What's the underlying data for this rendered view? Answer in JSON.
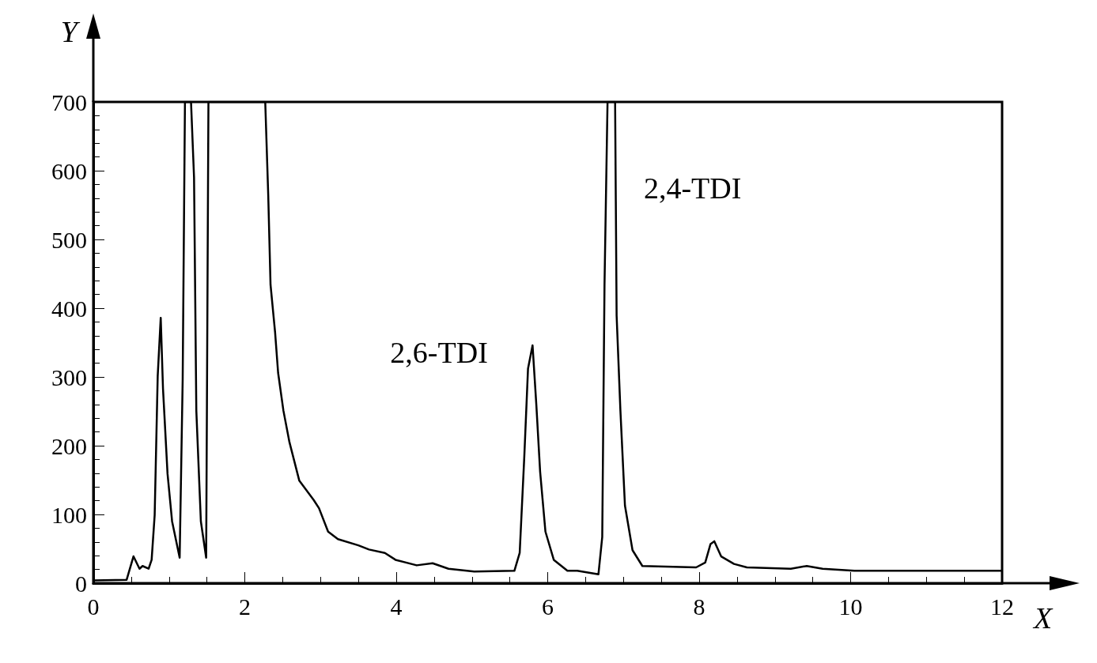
{
  "chart_data": {
    "type": "line",
    "xlabel": "X",
    "ylabel": "Y",
    "xlim": [
      0,
      12
    ],
    "xticks": [
      0,
      2,
      4,
      6,
      8,
      10,
      12
    ],
    "ylim": [
      0,
      700
    ],
    "yticks": [
      0,
      100,
      200,
      300,
      400,
      500,
      600,
      700
    ],
    "marker": "none",
    "series": [
      {
        "color": "#000000",
        "x": [
          0,
          0.44,
          0.53,
          0.61,
          0.65,
          0.73,
          0.77,
          0.81,
          0.85,
          0.89,
          0.92,
          0.98,
          1.04,
          1.14,
          1.18,
          1.21,
          1.29,
          1.33,
          1.36,
          1.42,
          1.49,
          1.52,
          2.27,
          2.31,
          2.34,
          2.4,
          2.44,
          2.51,
          2.59,
          2.72,
          2.91,
          2.98,
          3.1,
          3.23,
          3.5,
          3.64,
          3.85,
          3.99,
          4.27,
          4.48,
          4.69,
          5.03,
          5.56,
          5.63,
          5.69,
          5.74,
          5.8,
          5.85,
          5.9,
          5.97,
          6.08,
          6.26,
          6.39,
          6.67,
          6.72,
          6.75,
          6.79,
          6.89,
          6.91,
          6.96,
          7.02,
          7.12,
          7.25,
          7.96,
          8.08,
          8.15,
          8.2,
          8.29,
          8.46,
          8.63,
          9.21,
          9.42,
          9.63,
          10.05,
          11.84,
          12
        ],
        "values": [
          4,
          5,
          39,
          21,
          25,
          21,
          34,
          99,
          301,
          386,
          283,
          159,
          90,
          37,
          297,
          700,
          700,
          590,
          251,
          90,
          37,
          700,
          700,
          563,
          434,
          365,
          306,
          251,
          205,
          149,
          121,
          109,
          75,
          64,
          55,
          49,
          44,
          34,
          26,
          29,
          21,
          17,
          18,
          44,
          182,
          312,
          346,
          259,
          162,
          75,
          34,
          18,
          18,
          13,
          67,
          434,
          700,
          700,
          389,
          251,
          113,
          48,
          25,
          23,
          30,
          57,
          61,
          39,
          28,
          23,
          21,
          25,
          21,
          18,
          18,
          18
        ]
      }
    ],
    "annotations": [
      {
        "text": "2,6-TDI",
        "x": 5.8,
        "y": 346
      },
      {
        "text": "2,4-TDI",
        "x": 6.85,
        "y": 700
      }
    ]
  }
}
